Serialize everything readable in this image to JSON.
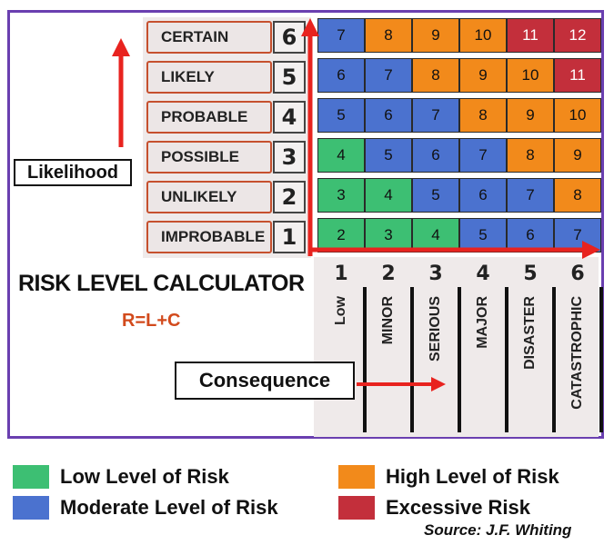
{
  "title": "RISK LEVEL CALCULATOR",
  "formula": "R=L+C",
  "likelihood_label": "Likelihood",
  "consequence_label": "Consequence",
  "likelihood_levels": [
    {
      "label": "CERTAIN",
      "value": "6"
    },
    {
      "label": "LIKELY",
      "value": "5"
    },
    {
      "label": "PROBABLE",
      "value": "4"
    },
    {
      "label": "POSSIBLE",
      "value": "3"
    },
    {
      "label": "UNLIKELY",
      "value": "2"
    },
    {
      "label": "IMPROBABLE",
      "value": "1"
    }
  ],
  "consequence_levels": [
    {
      "label": "Low",
      "value": "1"
    },
    {
      "label": "MINOR",
      "value": "2"
    },
    {
      "label": "SERIOUS",
      "value": "3"
    },
    {
      "label": "MAJOR",
      "value": "4"
    },
    {
      "label": "DISASTER",
      "value": "5"
    },
    {
      "label": "CATASTROPHIC",
      "value": "6"
    }
  ],
  "matrix": [
    [
      "7",
      "8",
      "9",
      "10",
      "11",
      "12"
    ],
    [
      "6",
      "7",
      "8",
      "9",
      "10",
      "11"
    ],
    [
      "5",
      "6",
      "7",
      "8",
      "9",
      "10"
    ],
    [
      "4",
      "5",
      "6",
      "7",
      "8",
      "9"
    ],
    [
      "3",
      "4",
      "5",
      "6",
      "7",
      "8"
    ],
    [
      "2",
      "3",
      "4",
      "5",
      "6",
      "7"
    ]
  ],
  "legend": [
    {
      "label": "Low Level of Risk",
      "color": "#3dbf73"
    },
    {
      "label": "High Level of Risk",
      "color": "#f28a1b"
    },
    {
      "label": "Moderate Level of Risk",
      "color": "#4b72cf"
    },
    {
      "label": "Excessive Risk",
      "color": "#c32f3b"
    }
  ],
  "source": "Source: J.F. Whiting",
  "colors": {
    "low": "#3dbf73",
    "moderate": "#4b72cf",
    "high": "#f28a1b",
    "excessive": "#c32f3b",
    "arrow": "#e8231f"
  }
}
